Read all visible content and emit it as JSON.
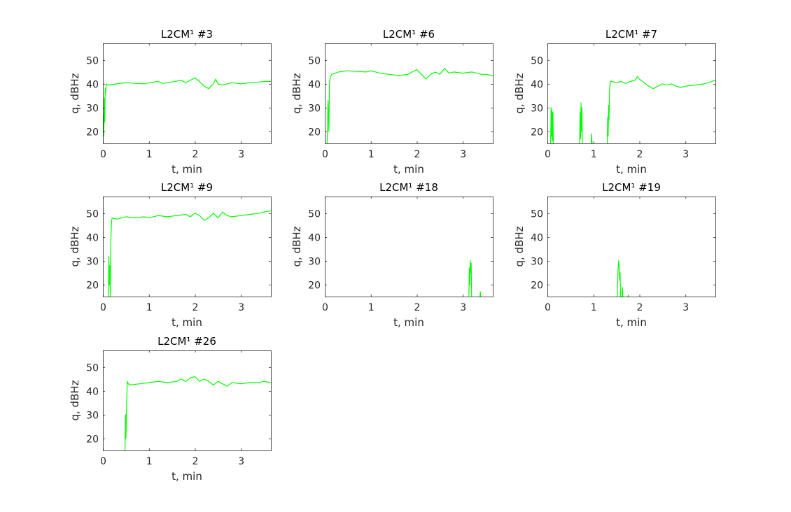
{
  "figure": {
    "line_color": "#00ff00",
    "axis_color": "#262626",
    "background": "#ffffff"
  },
  "chart_data": [
    {
      "type": "line",
      "title": "L2CM¹ #3",
      "xlabel": "t, min",
      "ylabel": "q, dBHz",
      "xlim": [
        0,
        3.65
      ],
      "ylim": [
        15,
        57
      ],
      "xticks": [
        0,
        1,
        2,
        3
      ],
      "yticks": [
        20,
        30,
        40,
        50
      ],
      "grid": false,
      "segments": [
        [
          [
            0.0,
            15
          ],
          [
            0.01,
            27
          ],
          [
            0.02,
            18
          ],
          [
            0.03,
            34
          ],
          [
            0.04,
            24
          ],
          [
            0.05,
            38
          ],
          [
            0.06,
            36
          ],
          [
            0.07,
            40
          ],
          [
            0.1,
            39.5
          ],
          [
            0.3,
            40
          ],
          [
            0.5,
            40.5
          ],
          [
            0.7,
            40.2
          ],
          [
            0.9,
            40
          ],
          [
            1.0,
            40.5
          ],
          [
            1.2,
            41
          ],
          [
            1.3,
            40.2
          ],
          [
            1.5,
            40.8
          ],
          [
            1.7,
            41.5
          ],
          [
            1.8,
            40.5
          ],
          [
            1.95,
            42
          ],
          [
            2.0,
            42.5
          ],
          [
            2.1,
            41
          ],
          [
            2.2,
            39
          ],
          [
            2.3,
            38
          ],
          [
            2.4,
            40
          ],
          [
            2.45,
            42
          ],
          [
            2.5,
            40
          ],
          [
            2.6,
            39.5
          ],
          [
            2.8,
            40.5
          ],
          [
            3.0,
            40
          ],
          [
            3.2,
            40.5
          ],
          [
            3.4,
            40.8
          ],
          [
            3.5,
            41
          ],
          [
            3.65,
            41
          ]
        ]
      ]
    },
    {
      "type": "line",
      "title": "L2CM¹ #6",
      "xlabel": "t, min",
      "ylabel": "q, dBHz",
      "xlim": [
        0,
        3.65
      ],
      "ylim": [
        15,
        57
      ],
      "xticks": [
        0,
        1,
        2,
        3
      ],
      "yticks": [
        20,
        30,
        40,
        50
      ],
      "grid": false,
      "segments": [
        [
          [
            0.05,
            15
          ],
          [
            0.07,
            33
          ],
          [
            0.09,
            20
          ],
          [
            0.1,
            40
          ],
          [
            0.12,
            43
          ],
          [
            0.15,
            44
          ],
          [
            0.3,
            45
          ],
          [
            0.5,
            45.5
          ],
          [
            0.7,
            45.2
          ],
          [
            0.9,
            45
          ],
          [
            1.0,
            45.5
          ],
          [
            1.2,
            44.5
          ],
          [
            1.4,
            44
          ],
          [
            1.6,
            43.5
          ],
          [
            1.8,
            44
          ],
          [
            1.9,
            45
          ],
          [
            2.0,
            46
          ],
          [
            2.1,
            44
          ],
          [
            2.2,
            42
          ],
          [
            2.3,
            44
          ],
          [
            2.4,
            45
          ],
          [
            2.5,
            44
          ],
          [
            2.6,
            46.5
          ],
          [
            2.7,
            44.5
          ],
          [
            2.8,
            45
          ],
          [
            3.0,
            44.5
          ],
          [
            3.2,
            45
          ],
          [
            3.4,
            44
          ],
          [
            3.5,
            44
          ],
          [
            3.65,
            43.5
          ]
        ]
      ]
    },
    {
      "type": "line",
      "title": "L2CM¹ #7",
      "xlabel": "t, min",
      "ylabel": "q, dBHz",
      "xlim": [
        0,
        3.65
      ],
      "ylim": [
        15,
        57
      ],
      "xticks": [
        0,
        1,
        2,
        3
      ],
      "yticks": [
        20,
        30,
        40,
        50
      ],
      "grid": false,
      "segments": [
        [
          [
            0.07,
            15
          ],
          [
            0.08,
            30
          ],
          [
            0.09,
            18
          ],
          [
            0.1,
            29
          ],
          [
            0.11,
            16
          ],
          [
            0.12,
            28
          ],
          [
            0.13,
            15
          ]
        ],
        [
          [
            0.7,
            15
          ],
          [
            0.71,
            28
          ],
          [
            0.72,
            17
          ],
          [
            0.73,
            32
          ],
          [
            0.74,
            20
          ],
          [
            0.75,
            30
          ],
          [
            0.76,
            15
          ]
        ],
        [
          [
            0.95,
            15
          ],
          [
            0.96,
            19
          ],
          [
            0.97,
            15
          ]
        ],
        [
          [
            1.3,
            15
          ],
          [
            1.31,
            26
          ],
          [
            1.32,
            18
          ],
          [
            1.33,
            31
          ],
          [
            1.34,
            25
          ],
          [
            1.35,
            38
          ],
          [
            1.37,
            41
          ],
          [
            1.4,
            41
          ],
          [
            1.5,
            40.5
          ],
          [
            1.6,
            41
          ],
          [
            1.7,
            40.2
          ],
          [
            1.8,
            41
          ],
          [
            1.9,
            41.5
          ],
          [
            1.95,
            43
          ],
          [
            2.0,
            42
          ],
          [
            2.1,
            40.5
          ],
          [
            2.2,
            39
          ],
          [
            2.3,
            38
          ],
          [
            2.4,
            39
          ],
          [
            2.5,
            40
          ],
          [
            2.6,
            39.5
          ],
          [
            2.7,
            40
          ],
          [
            2.8,
            39
          ],
          [
            2.9,
            38.5
          ],
          [
            3.0,
            39
          ],
          [
            3.2,
            39.5
          ],
          [
            3.4,
            40
          ],
          [
            3.5,
            40.5
          ],
          [
            3.65,
            41.5
          ]
        ]
      ]
    },
    {
      "type": "line",
      "title": "L2CM¹ #9",
      "xlabel": "t, min",
      "ylabel": "q, dBHz",
      "xlim": [
        0,
        3.65
      ],
      "ylim": [
        15,
        57
      ],
      "xticks": [
        0,
        1,
        2,
        3
      ],
      "yticks": [
        20,
        30,
        40,
        50
      ],
      "grid": false,
      "segments": [
        [
          [
            0.12,
            15
          ],
          [
            0.13,
            32
          ],
          [
            0.14,
            20
          ],
          [
            0.15,
            28
          ],
          [
            0.16,
            15
          ],
          [
            0.17,
            38
          ],
          [
            0.19,
            47
          ],
          [
            0.2,
            48
          ],
          [
            0.3,
            47.5
          ],
          [
            0.5,
            48.5
          ],
          [
            0.7,
            48
          ],
          [
            0.9,
            48.5
          ],
          [
            1.0,
            48
          ],
          [
            1.2,
            49
          ],
          [
            1.4,
            48.5
          ],
          [
            1.6,
            49
          ],
          [
            1.8,
            49.5
          ],
          [
            1.9,
            48.5
          ],
          [
            2.0,
            50
          ],
          [
            2.1,
            49
          ],
          [
            2.2,
            47
          ],
          [
            2.3,
            48
          ],
          [
            2.4,
            50
          ],
          [
            2.5,
            48
          ],
          [
            2.6,
            50.5
          ],
          [
            2.7,
            49
          ],
          [
            2.8,
            48.5
          ],
          [
            3.0,
            49
          ],
          [
            3.2,
            49.5
          ],
          [
            3.4,
            50
          ],
          [
            3.5,
            50.5
          ],
          [
            3.65,
            51
          ]
        ]
      ]
    },
    {
      "type": "line",
      "title": "L2CM¹ #18",
      "xlabel": "t, min",
      "ylabel": "q, dBHz",
      "xlim": [
        0,
        3.65
      ],
      "ylim": [
        15,
        57
      ],
      "xticks": [
        0,
        1,
        2,
        3
      ],
      "yticks": [
        20,
        30,
        40,
        50
      ],
      "grid": false,
      "segments": [
        [
          [
            3.13,
            15
          ],
          [
            3.14,
            27
          ],
          [
            3.15,
            20
          ],
          [
            3.16,
            30
          ],
          [
            3.17,
            25
          ],
          [
            3.18,
            29
          ],
          [
            3.19,
            15
          ]
        ],
        [
          [
            3.37,
            15
          ],
          [
            3.38,
            17
          ],
          [
            3.39,
            15
          ]
        ]
      ]
    },
    {
      "type": "line",
      "title": "L2CM¹ #19",
      "xlabel": "t, min",
      "ylabel": "q, dBHz",
      "xlim": [
        0,
        3.65
      ],
      "ylim": [
        15,
        57
      ],
      "xticks": [
        0,
        1,
        2,
        3
      ],
      "yticks": [
        20,
        30,
        40,
        50
      ],
      "grid": false,
      "segments": [
        [
          [
            1.52,
            15
          ],
          [
            1.53,
            24
          ],
          [
            1.54,
            28
          ],
          [
            1.55,
            30
          ],
          [
            1.56,
            27
          ],
          [
            1.57,
            22
          ],
          [
            1.58,
            25
          ],
          [
            1.59,
            15
          ]
        ],
        [
          [
            1.62,
            15
          ],
          [
            1.63,
            19
          ],
          [
            1.64,
            15
          ]
        ],
        [
          [
            1.75,
            15
          ],
          [
            1.76,
            15.5
          ],
          [
            1.77,
            15
          ]
        ]
      ]
    },
    {
      "type": "line",
      "title": "L2CM¹ #26",
      "xlabel": "t, min",
      "ylabel": "q, dBHz",
      "xlim": [
        0,
        3.65
      ],
      "ylim": [
        15,
        57
      ],
      "xticks": [
        0,
        1,
        2,
        3
      ],
      "yticks": [
        20,
        30,
        40,
        50
      ],
      "grid": false,
      "segments": [
        [
          [
            0.48,
            15
          ],
          [
            0.49,
            30
          ],
          [
            0.5,
            20
          ],
          [
            0.51,
            28
          ],
          [
            0.52,
            38
          ],
          [
            0.53,
            44
          ],
          [
            0.55,
            43
          ],
          [
            0.6,
            42.5
          ],
          [
            0.8,
            43
          ],
          [
            1.0,
            43.5
          ],
          [
            1.2,
            44
          ],
          [
            1.4,
            43.5
          ],
          [
            1.6,
            44
          ],
          [
            1.7,
            45
          ],
          [
            1.8,
            44
          ],
          [
            1.9,
            45.5
          ],
          [
            2.0,
            46
          ],
          [
            2.1,
            44
          ],
          [
            2.2,
            45
          ],
          [
            2.3,
            44
          ],
          [
            2.4,
            42.5
          ],
          [
            2.5,
            44
          ],
          [
            2.6,
            43
          ],
          [
            2.7,
            42
          ],
          [
            2.8,
            43.5
          ],
          [
            3.0,
            43
          ],
          [
            3.2,
            43.5
          ],
          [
            3.4,
            43.5
          ],
          [
            3.5,
            44
          ],
          [
            3.65,
            43.5
          ]
        ]
      ]
    }
  ]
}
